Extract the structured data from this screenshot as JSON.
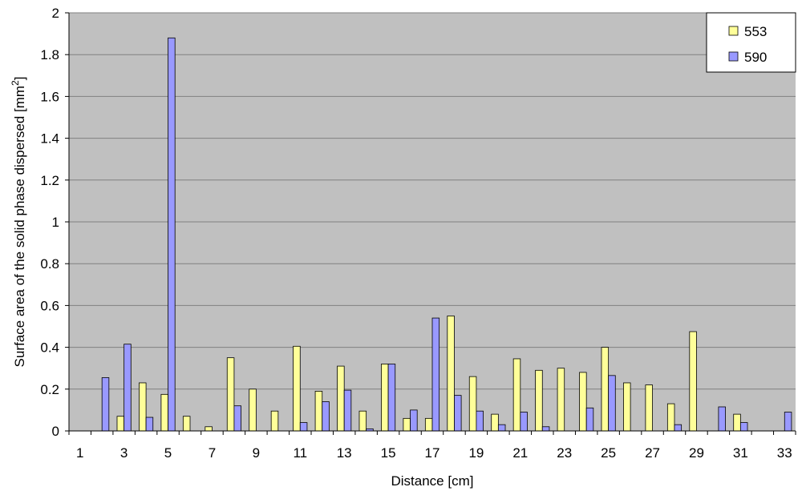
{
  "chart_data": {
    "type": "bar",
    "xlabel": "Distance [cm]",
    "ylabel": {
      "main": "Surface area of the solid phase dispersed [mm",
      "sup": "2",
      "end": "]"
    },
    "ylim": [
      0,
      2
    ],
    "yticks": [
      "0",
      "0.2",
      "0.4",
      "0.6",
      "0.8",
      "1",
      "1.2",
      "1.4",
      "1.6",
      "1.8",
      "2"
    ],
    "ytick_values": [
      0,
      0.2,
      0.4,
      0.6,
      0.8,
      1,
      1.2,
      1.4,
      1.6,
      1.8,
      2
    ],
    "categories": [
      1,
      2,
      3,
      4,
      5,
      6,
      7,
      8,
      9,
      10,
      11,
      12,
      13,
      14,
      15,
      16,
      17,
      18,
      19,
      20,
      21,
      22,
      23,
      24,
      25,
      26,
      27,
      28,
      29,
      30,
      31,
      32,
      33
    ],
    "xtick_labels": [
      "1",
      "3",
      "5",
      "7",
      "9",
      "11",
      "13",
      "15",
      "17",
      "19",
      "21",
      "23",
      "25",
      "27",
      "29",
      "31",
      "33"
    ],
    "xtick_values": [
      1,
      3,
      5,
      7,
      9,
      11,
      13,
      15,
      17,
      19,
      21,
      23,
      25,
      27,
      29,
      31,
      33
    ],
    "grid": true,
    "legend_position": "top-right",
    "colors": {
      "plot_bg": "#c0c0c0",
      "gridline": "#808080",
      "553": "#ffff99",
      "590": "#9999ff"
    },
    "series": [
      {
        "name": "553",
        "values": [
          0,
          0,
          0.07,
          0.23,
          0.175,
          0.07,
          0.02,
          0.35,
          0.2,
          0.095,
          0.405,
          0.19,
          0.31,
          0.095,
          0.32,
          0.06,
          0.06,
          0.55,
          0.26,
          0.08,
          0.345,
          0.29,
          0.3,
          0.28,
          0.4,
          0.23,
          0.22,
          0.13,
          0.475,
          0,
          0.08,
          0,
          0
        ]
      },
      {
        "name": "590",
        "values": [
          0,
          0.255,
          0.415,
          0.065,
          1.88,
          0,
          0,
          0.12,
          0,
          0,
          0.04,
          0.14,
          0.195,
          0.01,
          0.32,
          0.1,
          0.54,
          0.17,
          0.095,
          0.03,
          0.09,
          0.02,
          0,
          0.11,
          0.265,
          0,
          0,
          0.03,
          0,
          0.115,
          0.04,
          0,
          0.09
        ]
      }
    ]
  }
}
